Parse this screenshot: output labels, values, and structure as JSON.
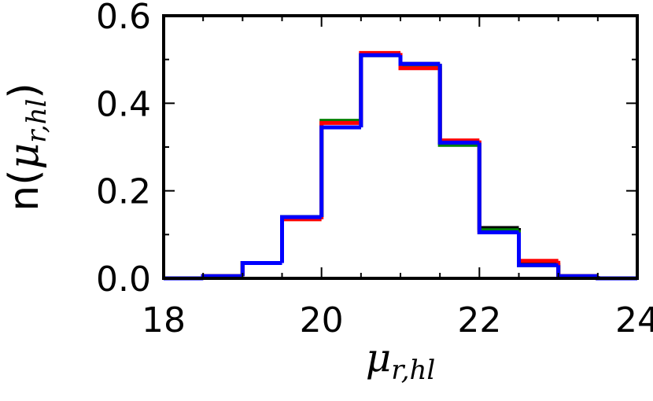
{
  "chart_data": {
    "type": "histogram",
    "bins": [
      18,
      18.5,
      19,
      19.5,
      20,
      20.5,
      21,
      21.5,
      22,
      22.5,
      23,
      23.5,
      24
    ],
    "series": [
      {
        "color": "#000000",
        "values": [
          0,
          0.005,
          0.035,
          0.14,
          0.345,
          0.51,
          0.49,
          0.31,
          0.115,
          0.035,
          0.005,
          0
        ]
      },
      {
        "color": "#008000",
        "values": [
          0,
          0.005,
          0.035,
          0.14,
          0.36,
          0.51,
          0.485,
          0.305,
          0.11,
          0.03,
          0.005,
          0
        ]
      },
      {
        "color": "#ff0000",
        "values": [
          0,
          0.005,
          0.035,
          0.135,
          0.355,
          0.515,
          0.48,
          0.315,
          0.105,
          0.04,
          0.005,
          0
        ]
      },
      {
        "color": "#0000ff",
        "values": [
          0,
          0.005,
          0.035,
          0.14,
          0.345,
          0.51,
          0.49,
          0.31,
          0.105,
          0.03,
          0.005,
          0
        ]
      }
    ],
    "xlabel": {
      "base": "μ",
      "sub": "r,hl"
    },
    "ylabel": {
      "prefix": "n(",
      "base": "μ",
      "sub": "r,hl",
      "suffix": ")"
    },
    "xlim": [
      18,
      24
    ],
    "ylim": [
      0,
      0.6
    ],
    "xticks": [
      18,
      20,
      22,
      24
    ],
    "yticks": [
      {
        "value": 0,
        "label": "0.0"
      },
      {
        "value": 0.2,
        "label": "0.2"
      },
      {
        "value": 0.4,
        "label": "0.4"
      },
      {
        "value": 0.6,
        "label": "0.6"
      }
    ],
    "xticks_minor": [
      18.5,
      19,
      19.5,
      20.5,
      21,
      21.5,
      22.5,
      23,
      23.5
    ],
    "yticks_minor": [
      0.1,
      0.3,
      0.5
    ]
  }
}
